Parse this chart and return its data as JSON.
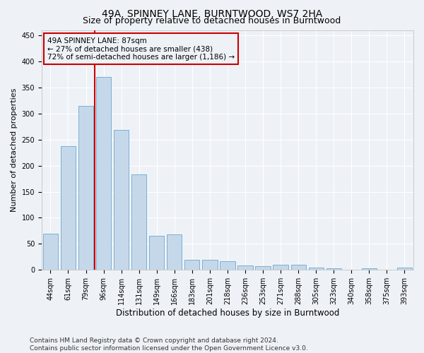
{
  "title": "49A, SPINNEY LANE, BURNTWOOD, WS7 2HA",
  "subtitle": "Size of property relative to detached houses in Burntwood",
  "xlabel": "Distribution of detached houses by size in Burntwood",
  "ylabel": "Number of detached properties",
  "categories": [
    "44sqm",
    "61sqm",
    "79sqm",
    "96sqm",
    "114sqm",
    "131sqm",
    "149sqm",
    "166sqm",
    "183sqm",
    "201sqm",
    "218sqm",
    "236sqm",
    "253sqm",
    "271sqm",
    "288sqm",
    "305sqm",
    "323sqm",
    "340sqm",
    "358sqm",
    "375sqm",
    "393sqm"
  ],
  "values": [
    70,
    237,
    315,
    370,
    268,
    183,
    65,
    68,
    20,
    20,
    17,
    8,
    7,
    10,
    10,
    4,
    3,
    1,
    3,
    1,
    4
  ],
  "bar_color": "#c5d8ea",
  "bar_edge_color": "#7bafd4",
  "property_line_color": "#cc0000",
  "annotation_text": "49A SPINNEY LANE: 87sqm\n← 27% of detached houses are smaller (438)\n72% of semi-detached houses are larger (1,186) →",
  "annotation_box_color": "#cc0000",
  "ylim": [
    0,
    460
  ],
  "background_color": "#eef2f7",
  "grid_color": "#ffffff",
  "footer_text": "Contains HM Land Registry data © Crown copyright and database right 2024.\nContains public sector information licensed under the Open Government Licence v3.0.",
  "title_fontsize": 10,
  "subtitle_fontsize": 9,
  "xlabel_fontsize": 8.5,
  "ylabel_fontsize": 8,
  "tick_fontsize": 7,
  "annotation_fontsize": 7.5,
  "footer_fontsize": 6.5
}
